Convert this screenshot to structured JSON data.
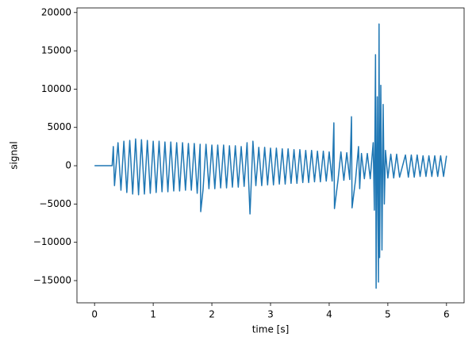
{
  "chart_data": {
    "type": "line",
    "x_label": "time [s]",
    "y_label": "signal",
    "xlim": [
      -0.3,
      6.3
    ],
    "ylim": [
      -17900,
      20600
    ],
    "xticks": [
      0,
      1,
      2,
      3,
      4,
      5,
      6
    ],
    "yticks": [
      {
        "value": -15000,
        "label": "−15000"
      },
      {
        "value": -10000,
        "label": "−10000"
      },
      {
        "value": -5000,
        "label": "−5000"
      },
      0,
      5000,
      10000,
      15000,
      20000
    ],
    "grid": false,
    "series": [
      {
        "name": "signal",
        "color": "#1f77b4",
        "x": [
          0,
          0.3,
          0.32,
          0.34,
          0.4,
          0.45,
          0.5,
          0.55,
          0.6,
          0.65,
          0.7,
          0.75,
          0.8,
          0.85,
          0.9,
          0.95,
          1.0,
          1.05,
          1.1,
          1.15,
          1.2,
          1.25,
          1.3,
          1.35,
          1.4,
          1.45,
          1.5,
          1.55,
          1.6,
          1.65,
          1.7,
          1.75,
          1.8,
          1.81,
          1.85,
          1.9,
          1.95,
          2.0,
          2.05,
          2.1,
          2.15,
          2.2,
          2.25,
          2.3,
          2.35,
          2.4,
          2.45,
          2.5,
          2.55,
          2.6,
          2.65,
          2.7,
          2.75,
          2.8,
          2.85,
          2.9,
          2.95,
          3.0,
          3.05,
          3.1,
          3.15,
          3.2,
          3.25,
          3.3,
          3.35,
          3.4,
          3.45,
          3.5,
          3.55,
          3.6,
          3.65,
          3.7,
          3.75,
          3.8,
          3.85,
          3.9,
          3.95,
          4.0,
          4.05,
          4.08,
          4.09,
          4.15,
          4.2,
          4.25,
          4.3,
          4.35,
          4.38,
          4.39,
          4.45,
          4.5,
          4.52,
          4.55,
          4.6,
          4.65,
          4.7,
          4.75,
          4.77,
          4.79,
          4.8,
          4.82,
          4.84,
          4.85,
          4.86,
          4.88,
          4.9,
          4.92,
          4.94,
          4.96,
          5.0,
          5.05,
          5.1,
          5.15,
          5.2,
          5.3,
          5.35,
          5.4,
          5.45,
          5.5,
          5.55,
          5.6,
          5.65,
          5.7,
          5.75,
          5.8,
          5.85,
          5.9,
          5.95,
          6.0
        ],
        "values": [
          0,
          0,
          2500,
          -2600,
          3000,
          -3200,
          3200,
          -3500,
          3300,
          -3700,
          3500,
          -3800,
          3400,
          -3700,
          3300,
          -3600,
          3200,
          -3500,
          3200,
          -3400,
          3100,
          -3400,
          3100,
          -3300,
          3000,
          -3300,
          3000,
          -3200,
          2900,
          -3200,
          2900,
          -3600,
          2800,
          -6000,
          -3100,
          2800,
          -3000,
          2700,
          -3000,
          2700,
          -2900,
          2700,
          -2900,
          2600,
          -2800,
          2600,
          -2800,
          2500,
          -2700,
          3000,
          -6300,
          3200,
          -2600,
          2400,
          -2600,
          2400,
          -2500,
          2300,
          -2500,
          2300,
          -2400,
          2200,
          -2400,
          2200,
          -2300,
          2100,
          -2300,
          2100,
          -2200,
          2000,
          -2200,
          2000,
          -2100,
          1900,
          -2100,
          1900,
          -2000,
          1800,
          -2000,
          5600,
          -5600,
          -1900,
          1800,
          -1900,
          1700,
          -1800,
          6400,
          -5500,
          -1800,
          2500,
          -3000,
          1600,
          -1700,
          1600,
          -1700,
          3000,
          -5800,
          14500,
          -16000,
          9000,
          -15200,
          18500,
          -12000,
          10500,
          -11000,
          8000,
          -5000,
          2000,
          -1600,
          1500,
          -1600,
          1500,
          -1500,
          1400,
          -1500,
          1400,
          -1500,
          1400,
          -1400,
          1300,
          -1400,
          1300,
          -1400,
          1300,
          -1400,
          1300,
          -1400,
          1300
        ]
      }
    ]
  }
}
